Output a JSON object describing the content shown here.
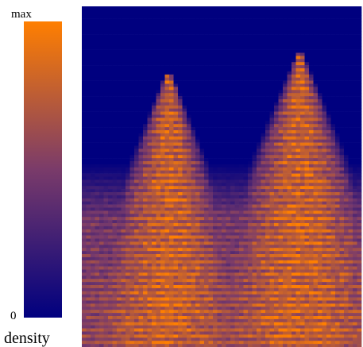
{
  "colorbar": {
    "max_label": "max",
    "min_label": "0",
    "title": "density"
  }
}
